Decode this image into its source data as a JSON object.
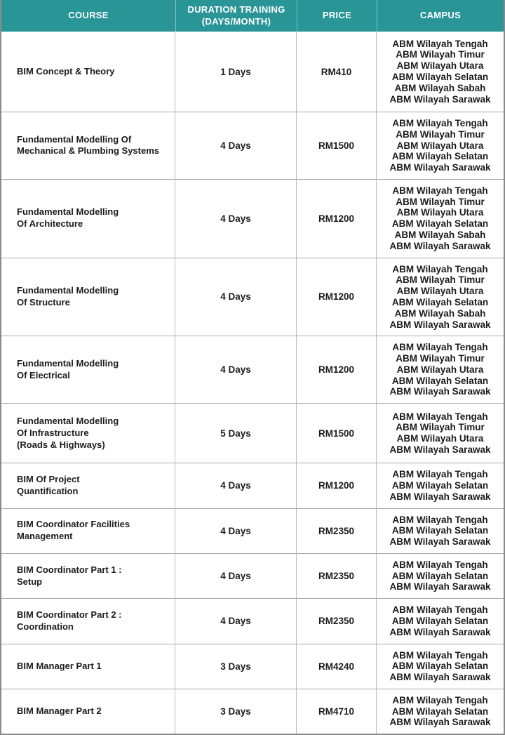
{
  "theme": {
    "header_bg": "#2a9596",
    "header_text": "#ffffff",
    "body_text": "#1c1c1c",
    "outer_border": "#8a8a8a",
    "grid_line": "#bcbcbc"
  },
  "table": {
    "columns": [
      {
        "key": "course",
        "label": "COURSE"
      },
      {
        "key": "duration",
        "label": [
          "DURATION TRAINING",
          "(DAYS/MONTH)"
        ]
      },
      {
        "key": "price",
        "label": "PRICE"
      },
      {
        "key": "campus",
        "label": "CAMPUS"
      }
    ],
    "rows": [
      {
        "course_lines": [
          "BIM Concept & Theory"
        ],
        "duration": "1 Days",
        "price": "RM410",
        "campuses": [
          "ABM Wilayah Tengah",
          "ABM Wilayah Timur",
          "ABM Wilayah Utara",
          "ABM Wilayah Selatan",
          "ABM Wilayah Sabah",
          "ABM Wilayah Sarawak"
        ]
      },
      {
        "course_lines": [
          "Fundamental Modelling Of",
          "Mechanical & Plumbing Systems"
        ],
        "duration": "4 Days",
        "price": "RM1500",
        "campuses": [
          "ABM Wilayah Tengah",
          "ABM Wilayah Timur",
          "ABM Wilayah Utara",
          "ABM Wilayah Selatan",
          "ABM Wilayah Sarawak"
        ]
      },
      {
        "course_lines": [
          "Fundamental Modelling",
          "Of Architecture"
        ],
        "duration": "4 Days",
        "price": "RM1200",
        "campuses": [
          "ABM Wilayah Tengah",
          "ABM Wilayah Timur",
          "ABM Wilayah Utara",
          "ABM Wilayah Selatan",
          "ABM Wilayah Sabah",
          "ABM Wilayah Sarawak"
        ]
      },
      {
        "course_lines": [
          "Fundamental Modelling",
          "Of Structure"
        ],
        "duration": "4 Days",
        "price": "RM1200",
        "campuses": [
          "ABM Wilayah Tengah",
          "ABM Wilayah Timur",
          "ABM Wilayah Utara",
          "ABM Wilayah Selatan",
          "ABM Wilayah Sabah",
          "ABM Wilayah Sarawak"
        ]
      },
      {
        "course_lines": [
          "Fundamental Modelling",
          "Of Electrical"
        ],
        "duration": "4 Days",
        "price": "RM1200",
        "campuses": [
          "ABM Wilayah Tengah",
          "ABM Wilayah Timur",
          "ABM Wilayah Utara",
          "ABM Wilayah Selatan",
          "ABM Wilayah Sarawak"
        ]
      },
      {
        "course_lines": [
          "Fundamental Modelling",
          "Of Infrastructure",
          "(Roads & Highways)"
        ],
        "duration": "5 Days",
        "price": "RM1500",
        "campuses": [
          "ABM Wilayah Tengah",
          "ABM Wilayah Timur",
          "ABM Wilayah Utara",
          "ABM Wilayah Sarawak"
        ]
      },
      {
        "course_lines": [
          "BIM Of Project",
          "Quantification"
        ],
        "duration": "4 Days",
        "price": "RM1200",
        "campuses": [
          "ABM Wilayah Tengah",
          "ABM Wilayah Selatan",
          "ABM Wilayah Sarawak"
        ]
      },
      {
        "course_lines": [
          "BIM Coordinator Facilities",
          "Management"
        ],
        "duration": "4 Days",
        "price": "RM2350",
        "campuses": [
          "ABM Wilayah Tengah",
          "ABM Wilayah Selatan",
          "ABM Wilayah Sarawak"
        ]
      },
      {
        "course_lines": [
          "BIM Coordinator Part 1 :",
          "Setup"
        ],
        "duration": "4 Days",
        "price": "RM2350",
        "campuses": [
          "ABM Wilayah Tengah",
          "ABM Wilayah Selatan",
          "ABM Wilayah Sarawak"
        ]
      },
      {
        "course_lines": [
          "BIM Coordinator Part 2 :",
          "Coordination"
        ],
        "duration": "4 Days",
        "price": "RM2350",
        "campuses": [
          "ABM Wilayah Tengah",
          "ABM Wilayah Selatan",
          "ABM Wilayah Sarawak"
        ]
      },
      {
        "course_lines": [
          "BIM Manager Part 1"
        ],
        "duration": "3 Days",
        "price": "RM4240",
        "campuses": [
          "ABM Wilayah Tengah",
          "ABM Wilayah Selatan",
          "ABM Wilayah Sarawak"
        ]
      },
      {
        "course_lines": [
          "BIM Manager Part 2"
        ],
        "duration": "3 Days",
        "price": "RM4710",
        "campuses": [
          "ABM Wilayah Tengah",
          "ABM Wilayah Selatan",
          "ABM Wilayah Sarawak"
        ]
      }
    ]
  }
}
